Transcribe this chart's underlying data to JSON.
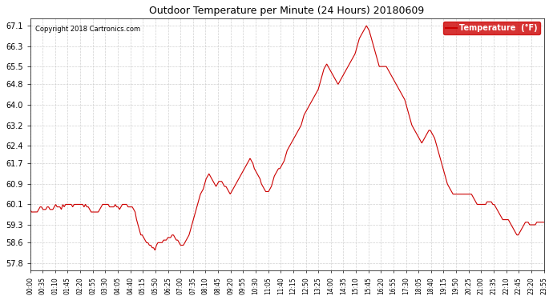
{
  "title": "Outdoor Temperature per Minute (24 Hours) 20180609",
  "copyright": "Copyright 2018 Cartronics.com",
  "legend_label": "Temperature  (°F)",
  "legend_bg": "#cc0000",
  "legend_fg": "#ffffff",
  "line_color": "#cc0000",
  "bg_color": "#ffffff",
  "grid_color": "#cccccc",
  "yticks": [
    57.8,
    58.6,
    59.3,
    60.1,
    60.9,
    61.7,
    62.4,
    63.2,
    64.0,
    64.8,
    65.5,
    66.3,
    67.1
  ],
  "ylim": [
    57.5,
    67.4
  ],
  "xtick_labels": [
    "00:00",
    "00:35",
    "01:10",
    "01:45",
    "02:20",
    "02:55",
    "03:30",
    "04:05",
    "04:40",
    "05:15",
    "05:50",
    "06:25",
    "07:00",
    "07:35",
    "08:10",
    "08:45",
    "09:20",
    "09:55",
    "10:30",
    "11:05",
    "11:40",
    "12:15",
    "12:50",
    "13:25",
    "14:00",
    "14:35",
    "15:10",
    "15:45",
    "16:20",
    "16:55",
    "17:30",
    "18:05",
    "18:40",
    "19:15",
    "19:50",
    "20:25",
    "21:00",
    "21:35",
    "22:10",
    "22:45",
    "23:20",
    "23:55"
  ],
  "temperature_profile": [
    59.9,
    59.8,
    59.8,
    59.8,
    59.8,
    59.8,
    59.9,
    60.0,
    60.0,
    59.9,
    59.9,
    59.9,
    60.0,
    60.0,
    59.9,
    59.9,
    59.9,
    60.0,
    60.1,
    60.0,
    60.0,
    60.0,
    59.9,
    60.1,
    60.0,
    60.1,
    60.1,
    60.1,
    60.1,
    60.1,
    60.0,
    60.1,
    60.1,
    60.1,
    60.1,
    60.1,
    60.1,
    60.1,
    60.0,
    60.1,
    60.0,
    60.0,
    59.9,
    59.8,
    59.8,
    59.8,
    59.8,
    59.8,
    59.8,
    59.9,
    60.0,
    60.1,
    60.1,
    60.1,
    60.1,
    60.1,
    60.0,
    60.0,
    60.0,
    60.0,
    60.1,
    60.0,
    60.0,
    59.9,
    60.0,
    60.1,
    60.1,
    60.1,
    60.1,
    60.0,
    60.0,
    60.0,
    60.0,
    59.9,
    59.8,
    59.5,
    59.3,
    59.1,
    58.9,
    58.9,
    58.8,
    58.7,
    58.6,
    58.6,
    58.5,
    58.5,
    58.4,
    58.4,
    58.3,
    58.5,
    58.6,
    58.6,
    58.6,
    58.6,
    58.7,
    58.7,
    58.7,
    58.8,
    58.8,
    58.8,
    58.9,
    58.9,
    58.8,
    58.7,
    58.7,
    58.6,
    58.5,
    58.5,
    58.5,
    58.6,
    58.7,
    58.8,
    58.9,
    59.1,
    59.3,
    59.5,
    59.7,
    59.9,
    60.1,
    60.3,
    60.5,
    60.6,
    60.7,
    60.9,
    61.1,
    61.2,
    61.3,
    61.2,
    61.1,
    61.0,
    60.9,
    60.8,
    60.9,
    61.0,
    61.0,
    61.0,
    60.9,
    60.8,
    60.8,
    60.7,
    60.6,
    60.5,
    60.6,
    60.7,
    60.8,
    60.9,
    61.0,
    61.1,
    61.2,
    61.3,
    61.4,
    61.5,
    61.6,
    61.7,
    61.8,
    61.9,
    61.8,
    61.7,
    61.5,
    61.4,
    61.3,
    61.2,
    61.1,
    60.9,
    60.8,
    60.7,
    60.6,
    60.6,
    60.6,
    60.7,
    60.8,
    61.0,
    61.2,
    61.3,
    61.4,
    61.5,
    61.5,
    61.6,
    61.7,
    61.8,
    62.0,
    62.2,
    62.3,
    62.4,
    62.5,
    62.6,
    62.7,
    62.8,
    62.9,
    63.0,
    63.1,
    63.2,
    63.4,
    63.6,
    63.7,
    63.8,
    63.9,
    64.0,
    64.1,
    64.2,
    64.3,
    64.4,
    64.5,
    64.6,
    64.8,
    65.0,
    65.2,
    65.4,
    65.5,
    65.6,
    65.5,
    65.4,
    65.3,
    65.2,
    65.1,
    65.0,
    64.9,
    64.8,
    64.9,
    65.0,
    65.1,
    65.2,
    65.3,
    65.4,
    65.5,
    65.6,
    65.7,
    65.8,
    65.9,
    66.0,
    66.2,
    66.4,
    66.6,
    66.7,
    66.8,
    66.9,
    67.0,
    67.1,
    67.0,
    66.9,
    66.7,
    66.5,
    66.3,
    66.1,
    65.9,
    65.7,
    65.5,
    65.5,
    65.5,
    65.5,
    65.5,
    65.5,
    65.4,
    65.3,
    65.2,
    65.1,
    65.0,
    64.9,
    64.8,
    64.7,
    64.6,
    64.5,
    64.4,
    64.3,
    64.2,
    64.0,
    63.8,
    63.6,
    63.4,
    63.2,
    63.1,
    63.0,
    62.9,
    62.8,
    62.7,
    62.6,
    62.5,
    62.6,
    62.7,
    62.8,
    62.9,
    63.0,
    63.0,
    62.9,
    62.8,
    62.7,
    62.5,
    62.3,
    62.1,
    61.9,
    61.7,
    61.5,
    61.3,
    61.1,
    60.9,
    60.8,
    60.7,
    60.6,
    60.5,
    60.5,
    60.5,
    60.5,
    60.5,
    60.5,
    60.5,
    60.5,
    60.5,
    60.5,
    60.5,
    60.5,
    60.5,
    60.5,
    60.4,
    60.3,
    60.2,
    60.1,
    60.1,
    60.1,
    60.1,
    60.1,
    60.1,
    60.1,
    60.2,
    60.2,
    60.2,
    60.2,
    60.1,
    60.1,
    60.0,
    59.9,
    59.8,
    59.7,
    59.6,
    59.5,
    59.5,
    59.5,
    59.5,
    59.5,
    59.4,
    59.3,
    59.2,
    59.1,
    59.0,
    58.9,
    58.9,
    59.0,
    59.1,
    59.2,
    59.3,
    59.4,
    59.4,
    59.4,
    59.3,
    59.3,
    59.3,
    59.3,
    59.3,
    59.4,
    59.4,
    59.4,
    59.4,
    59.4,
    59.4
  ]
}
